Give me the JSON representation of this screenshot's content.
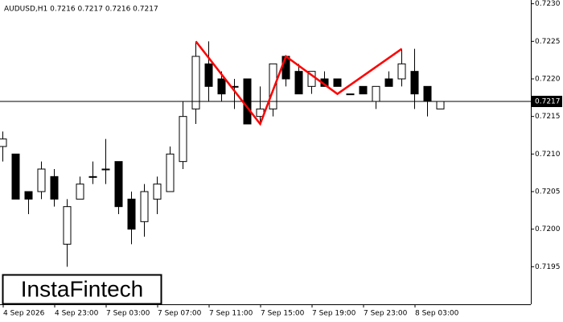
{
  "chart_data": {
    "type": "candlestick",
    "title": "AUDUSD,H1  0.7216 0.7217 0.7216 0.7217",
    "brand": "InstaFintech",
    "categories": [
      "4 Sep 2026",
      null,
      null,
      null,
      "4 Sep 23:00",
      null,
      null,
      null,
      "7 Sep 03:00",
      null,
      null,
      null,
      "7 Sep 07:00",
      null,
      null,
      null,
      "7 Sep 11:00",
      null,
      null,
      null,
      "7 Sep 15:00",
      null,
      null,
      null,
      "7 Sep 19:00",
      null,
      null,
      null,
      "7 Sep 23:00",
      null,
      null,
      null,
      "8 Sep 03:00",
      null,
      null
    ],
    "open": [
      0.7211,
      0.721,
      0.7205,
      0.7205,
      0.7207,
      0.7198,
      0.7204,
      0.7207,
      0.7208,
      0.7209,
      0.7204,
      0.7201,
      0.7204,
      0.7205,
      0.7209,
      0.7216,
      0.7222,
      0.722,
      0.7219,
      0.722,
      0.7215,
      0.7216,
      0.7223,
      0.7221,
      0.7219,
      0.722,
      0.722,
      0.7218,
      0.7219,
      0.7217,
      0.722,
      0.722,
      0.7221,
      0.7219,
      0.7216
    ],
    "high": [
      0.7213,
      0.721,
      0.7205,
      0.7209,
      0.7208,
      0.7204,
      0.7207,
      0.7209,
      0.7212,
      0.7209,
      0.7205,
      0.7206,
      0.7207,
      0.7211,
      0.7217,
      0.7225,
      0.7225,
      0.7221,
      0.722,
      0.722,
      0.7219,
      0.7222,
      0.7223,
      0.7222,
      0.7221,
      0.7221,
      0.722,
      0.7218,
      0.7219,
      0.7219,
      0.7221,
      0.7224,
      0.7224,
      0.7219,
      0.7217
    ],
    "low": [
      0.7209,
      0.7204,
      0.7202,
      0.7204,
      0.7203,
      0.7195,
      0.7204,
      0.7206,
      0.7206,
      0.7202,
      0.7198,
      0.7199,
      0.7202,
      0.7205,
      0.7208,
      0.7214,
      0.7217,
      0.7217,
      0.7216,
      0.7214,
      0.7214,
      0.7215,
      0.7219,
      0.7218,
      0.7218,
      0.7219,
      0.7219,
      0.7218,
      0.7218,
      0.7216,
      0.7219,
      0.7219,
      0.7216,
      0.7215,
      0.7216
    ],
    "close": [
      0.7212,
      0.7204,
      0.7204,
      0.7208,
      0.7204,
      0.7203,
      0.7206,
      0.7207,
      0.7208,
      0.7203,
      0.72,
      0.7205,
      0.7206,
      0.721,
      0.7215,
      0.7223,
      0.7219,
      0.7218,
      0.7219,
      0.7214,
      0.7216,
      0.7222,
      0.722,
      0.7218,
      0.7221,
      0.7219,
      0.7219,
      0.7218,
      0.7218,
      0.7219,
      0.7219,
      0.7222,
      0.7218,
      0.7217,
      0.7217
    ],
    "ylim": [
      0.719,
      0.72305
    ],
    "yticks": [
      0.7195,
      {
        "value": 0.72,
        "label": "0.7200"
      },
      0.7205,
      {
        "value": 0.721,
        "label": "0.7210"
      },
      0.7215,
      {
        "value": 0.722,
        "label": "0.7220"
      },
      0.7225,
      {
        "value": 0.723,
        "label": "0.7230"
      }
    ],
    "current_price": 0.7217,
    "pattern_line": {
      "color": "#ff0000",
      "points": [
        {
          "index": 15,
          "value": 0.7225
        },
        {
          "index": 20,
          "value": 0.7214
        },
        {
          "index": 22,
          "value": 0.7223
        },
        {
          "index": 26,
          "value": 0.7218
        },
        {
          "index": 31,
          "value": 0.7224
        }
      ]
    }
  }
}
